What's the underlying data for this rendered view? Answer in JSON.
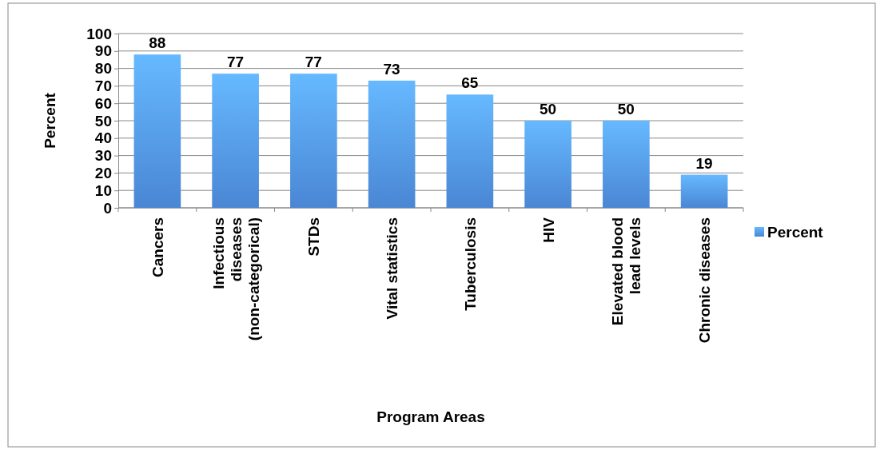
{
  "chart_data": {
    "type": "bar",
    "xlabel": "Program Areas",
    "ylabel": "Percent",
    "categories": [
      "Cancers",
      "Infectious diseases (non-categorical)",
      "STDs",
      "Vital statistics",
      "Tuberculosis",
      "HIV",
      "Elevated blood lead levels",
      "Chronic diseases"
    ],
    "series": [
      {
        "name": "Percent",
        "color": "#4a86d4",
        "values": [
          88,
          77,
          77,
          73,
          65,
          50,
          50,
          19
        ]
      }
    ],
    "ylim": [
      0,
      100
    ],
    "yticks": [
      0,
      10,
      20,
      30,
      40,
      50,
      60,
      70,
      80,
      90,
      100
    ],
    "grid": "y",
    "legend": "right",
    "data_labels": true
  }
}
